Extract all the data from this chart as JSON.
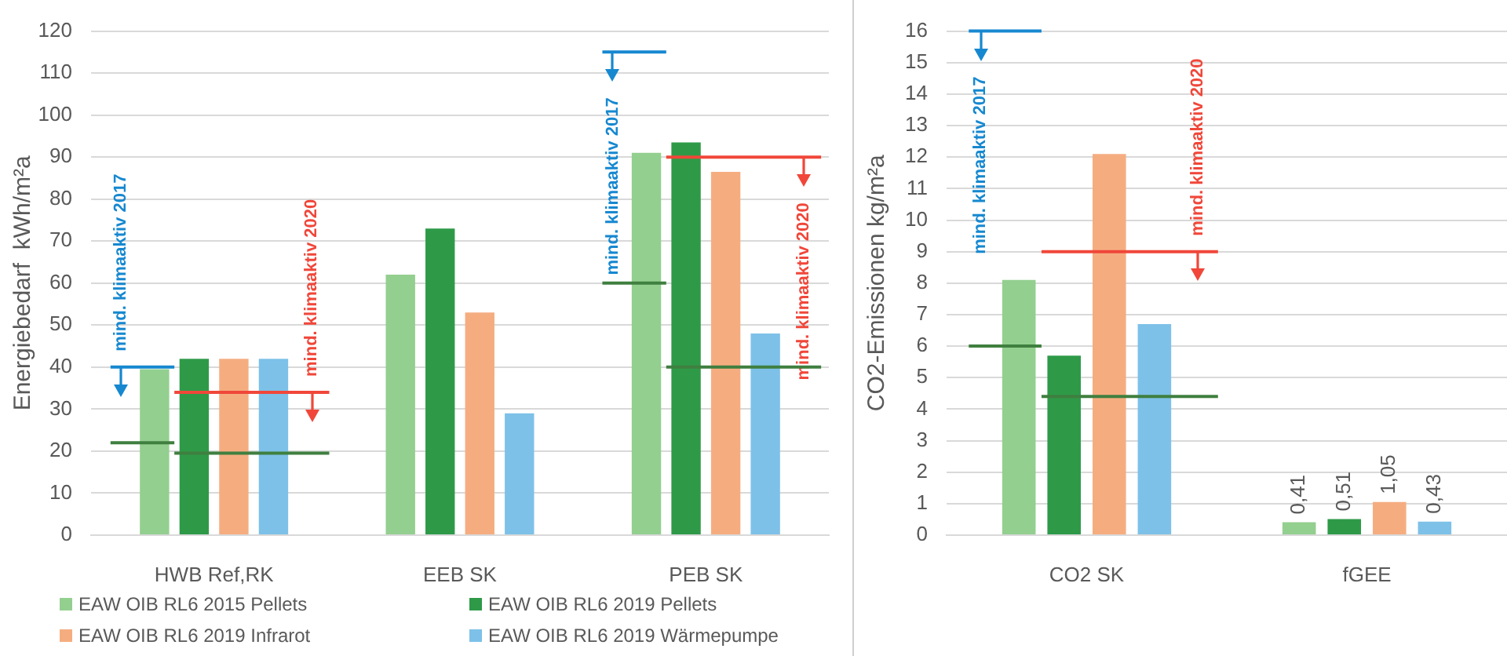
{
  "chart_data": [
    {
      "type": "bar",
      "categories": [
        "HWB Ref,RK",
        "EEB SK",
        "PEB SK"
      ],
      "ylabel": "Energiebedarf  kWh/m²a",
      "ylim": [
        0,
        120
      ],
      "yticks": [
        0,
        10,
        20,
        30,
        40,
        50,
        60,
        70,
        80,
        90,
        100,
        110,
        120
      ],
      "grid": "y",
      "legend": "bottom",
      "series": [
        {
          "name": "EAW OIB RL6 2015 Pellets",
          "color": "#93cf8f",
          "values": [
            39.5,
            62,
            91
          ]
        },
        {
          "name": "EAW OIB RL6 2019 Pellets",
          "color": "#2e9a48",
          "values": [
            42,
            73,
            93.5
          ]
        },
        {
          "name": "EAW OIB RL6 2019 Infrarot",
          "color": "#f5ad80",
          "values": [
            42,
            53,
            86.5
          ]
        },
        {
          "name": "EAW OIB RL6 2019 Wärmepumpe",
          "color": "#7dc1e8",
          "values": [
            42,
            29,
            48
          ]
        }
      ],
      "ref_lines": [
        {
          "axis": "y",
          "value": 40,
          "label": "mind. klimaaktiv 2017",
          "color": "#1688d0"
        },
        {
          "axis": "y",
          "value": 22,
          "color": "#3f7f3f"
        },
        {
          "axis": "y",
          "value": 34,
          "label": "mind. klimaaktiv 2020",
          "color": "#f0473a"
        },
        {
          "axis": "y",
          "value": 19.5,
          "color": "#3f7f3f"
        },
        {
          "axis": "y",
          "value": 115,
          "label": "mind. klimaaktiv 2017",
          "color": "#1688d0"
        },
        {
          "axis": "y",
          "value": 60,
          "color": "#3f7f3f"
        },
        {
          "axis": "y",
          "value": 90,
          "label": "mind. klimaaktiv 2020",
          "color": "#f0473a"
        },
        {
          "axis": "y",
          "value": 40,
          "color": "#3f7f3f"
        }
      ]
    },
    {
      "type": "bar",
      "categories": [
        "CO2 SK",
        "fGEE"
      ],
      "ylabel": "CO2-Emissionen kg/m²a",
      "ylim": [
        0,
        16
      ],
      "yticks": [
        0,
        1,
        2,
        3,
        4,
        5,
        6,
        7,
        8,
        9,
        10,
        11,
        12,
        13,
        14,
        15,
        16
      ],
      "grid": "y",
      "series": [
        {
          "color": "#93cf8f",
          "values": [
            8.1,
            0.41
          ],
          "value_labels": [
            null,
            "0,41"
          ]
        },
        {
          "color": "#2e9a48",
          "values": [
            5.7,
            0.51
          ],
          "value_labels": [
            null,
            "0,51"
          ]
        },
        {
          "color": "#f5ad80",
          "values": [
            12.1,
            1.05
          ],
          "value_labels": [
            null,
            "1,05"
          ]
        },
        {
          "color": "#7dc1e8",
          "values": [
            6.7,
            0.43
          ],
          "value_labels": [
            null,
            "0,43"
          ]
        }
      ],
      "ref_lines": [
        {
          "axis": "y",
          "value": 16,
          "label": "mind. klimaaktiv 2017",
          "color": "#1688d0"
        },
        {
          "axis": "y",
          "value": 6,
          "color": "#3f7f3f"
        },
        {
          "axis": "y",
          "value": 9,
          "label": "mind. klimaaktiv 2020",
          "color": "#f0473a"
        },
        {
          "axis": "y",
          "value": 4.4,
          "color": "#3f7f3f"
        }
      ]
    }
  ]
}
